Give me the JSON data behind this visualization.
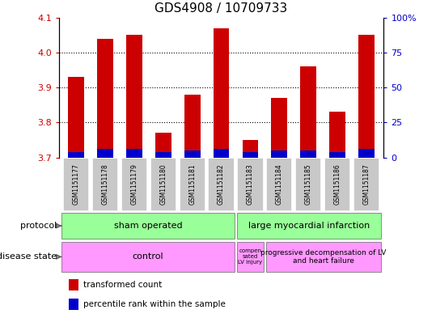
{
  "title": "GDS4908 / 10709733",
  "samples": [
    "GSM1151177",
    "GSM1151178",
    "GSM1151179",
    "GSM1151180",
    "GSM1151181",
    "GSM1151182",
    "GSM1151183",
    "GSM1151184",
    "GSM1151185",
    "GSM1151186",
    "GSM1151187"
  ],
  "red_values": [
    3.93,
    4.04,
    4.05,
    3.77,
    3.88,
    4.07,
    3.75,
    3.87,
    3.96,
    3.83,
    4.05
  ],
  "blue_values": [
    3.715,
    3.725,
    3.725,
    3.715,
    3.72,
    3.725,
    3.715,
    3.72,
    3.72,
    3.715,
    3.725
  ],
  "baseline": 3.7,
  "ylim_left": [
    3.7,
    4.1
  ],
  "ylim_right": [
    0,
    100
  ],
  "yticks_left": [
    3.7,
    3.8,
    3.9,
    4.0,
    4.1
  ],
  "yticks_right": [
    0,
    25,
    50,
    75,
    100
  ],
  "red_color": "#CC0000",
  "blue_color": "#0000CC",
  "bar_width": 0.55,
  "protocol_labels": [
    "sham operated",
    "large myocardial infarction"
  ],
  "protocol_color": "#99FF99",
  "disease_labels": [
    "control",
    "compen\nsated\nLV injury",
    "progressive decompensation of LV\nand heart failure"
  ],
  "disease_color": "#FF99FF",
  "sample_bg_color": "#C8C8C8",
  "legend_red": "transformed count",
  "legend_blue": "percentile rank within the sample",
  "protocol_row_label": "protocol",
  "disease_row_label": "disease state",
  "title_fontsize": 11,
  "tick_fontsize": 8,
  "sample_fontsize": 5.5,
  "row_label_fontsize": 8,
  "row_content_fontsize": 8,
  "legend_fontsize": 7.5
}
